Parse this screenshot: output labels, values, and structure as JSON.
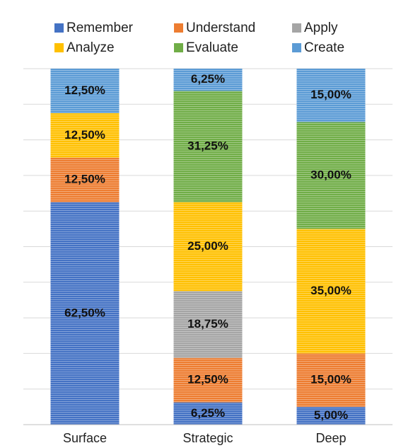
{
  "chart_data": {
    "type": "stacked_bar",
    "categories": [
      "Surface",
      "Strategic",
      "Deep"
    ],
    "series": [
      {
        "name": "Remember",
        "color": "#4472c4",
        "values": [
          62.5,
          6.25,
          5
        ],
        "value_labels": [
          "62,50%",
          "6,25%",
          "5,00%"
        ]
      },
      {
        "name": "Understand",
        "color": "#ed7d31",
        "values": [
          12.5,
          12.5,
          15
        ],
        "value_labels": [
          "12,50%",
          "12,50%",
          "15,00%"
        ]
      },
      {
        "name": "Apply",
        "color": "#a5a5a5",
        "values": [
          0,
          18.75,
          0
        ],
        "value_labels": [
          null,
          "18,75%",
          null
        ]
      },
      {
        "name": "Analyze",
        "color": "#ffc000",
        "values": [
          12.5,
          25,
          35
        ],
        "value_labels": [
          "12,50%",
          "25,00%",
          "35,00%"
        ]
      },
      {
        "name": "Evaluate",
        "color": "#70ad47",
        "values": [
          0,
          31.25,
          30
        ],
        "value_labels": [
          null,
          "31,25%",
          "30,00%"
        ]
      },
      {
        "name": "Create",
        "color": "#5b9bd5",
        "values": [
          12.5,
          6.25,
          15
        ],
        "value_labels": [
          "12,50%",
          "6,25%",
          "15,00%"
        ]
      }
    ],
    "ylim": [
      0,
      100
    ],
    "yticks": [
      0,
      10,
      20,
      30,
      40,
      50,
      60,
      70,
      80,
      90,
      100
    ],
    "grid": true
  }
}
